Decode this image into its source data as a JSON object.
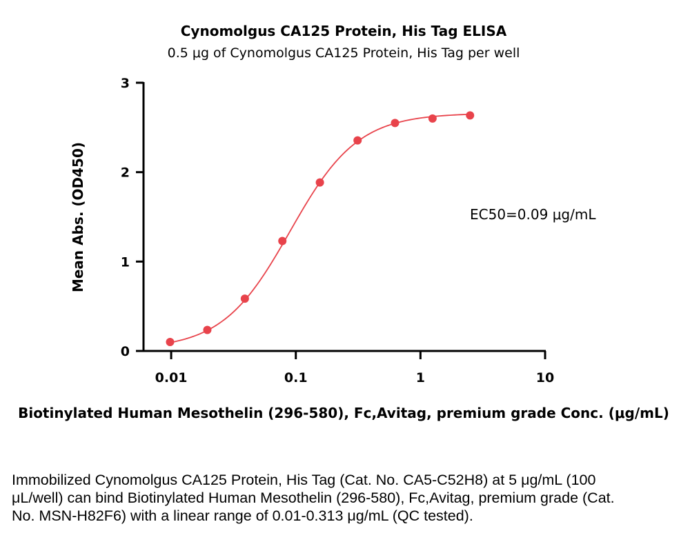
{
  "chart_data": {
    "type": "scatter",
    "title": "Cynomolgus CA125 Protein, His Tag ELISA",
    "subtitle": "0.5 μg of Cynomolgus CA125 Protein, His Tag per well",
    "xlabel": "Biotinylated Human Mesothelin (296-580), Fc,Avitag, premium grade Conc. (μg/mL)",
    "ylabel": "Mean Abs. (OD450)",
    "xscale": "log10",
    "xlim": [
      0.006,
      10
    ],
    "ylim": [
      0,
      3
    ],
    "x_ticks": [
      0.01,
      0.1,
      1,
      10
    ],
    "x_tick_labels": [
      "0.01",
      "0.1",
      "1",
      "10"
    ],
    "y_ticks": [
      0,
      1,
      2,
      3
    ],
    "y_tick_labels": [
      "0",
      "1",
      "2",
      "3"
    ],
    "series": [
      {
        "name": "Biotinylated Human Mesothelin (296-580), Fc,Avitag",
        "color": "#e8434b",
        "x": [
          0.0098,
          0.0195,
          0.039,
          0.078,
          0.156,
          0.313,
          0.625,
          1.25,
          2.5
        ],
        "y": [
          0.1,
          0.235,
          0.585,
          1.23,
          1.885,
          2.355,
          2.55,
          2.6,
          2.635
        ]
      }
    ],
    "fit": {
      "model": "4PL",
      "bottom": 0.02,
      "top": 2.66,
      "ec50": 0.09,
      "hill": 1.6
    },
    "annotation": "EC50=0.09 μg/mL",
    "grid": false
  },
  "caption": "Immobilized Cynomolgus CA125 Protein, His Tag (Cat. No. CA5-C52H8) at 5 μg/mL (100 μL/well) can bind Biotinylated Human Mesothelin (296-580), Fc,Avitag, premium grade (Cat. No. MSN-H82F6) with a linear range of 0.01-0.313 μg/mL (QC tested)."
}
